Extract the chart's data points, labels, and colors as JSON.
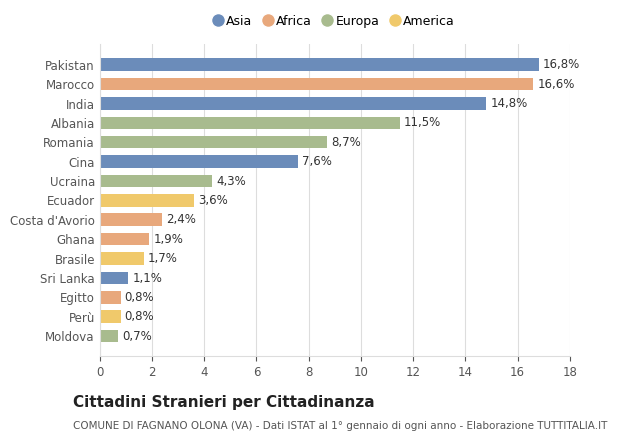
{
  "countries": [
    "Pakistan",
    "Marocco",
    "India",
    "Albania",
    "Romania",
    "Cina",
    "Ucraina",
    "Ecuador",
    "Costa d'Avorio",
    "Ghana",
    "Brasile",
    "Sri Lanka",
    "Egitto",
    "Perù",
    "Moldova"
  ],
  "values": [
    16.8,
    16.6,
    14.8,
    11.5,
    8.7,
    7.6,
    4.3,
    3.6,
    2.4,
    1.9,
    1.7,
    1.1,
    0.8,
    0.8,
    0.7
  ],
  "labels": [
    "16,8%",
    "16,6%",
    "14,8%",
    "11,5%",
    "8,7%",
    "7,6%",
    "4,3%",
    "3,6%",
    "2,4%",
    "1,9%",
    "1,7%",
    "1,1%",
    "0,8%",
    "0,8%",
    "0,7%"
  ],
  "continents": [
    "Asia",
    "Africa",
    "Asia",
    "Europa",
    "Europa",
    "Asia",
    "Europa",
    "America",
    "Africa",
    "Africa",
    "America",
    "Asia",
    "Africa",
    "America",
    "Europa"
  ],
  "colors": {
    "Asia": "#6b8cba",
    "Africa": "#e8a87c",
    "Europa": "#a8bb8e",
    "America": "#f0c96b"
  },
  "legend_order": [
    "Asia",
    "Africa",
    "Europa",
    "America"
  ],
  "title": "Cittadini Stranieri per Cittadinanza",
  "subtitle": "COMUNE DI FAGNANO OLONA (VA) - Dati ISTAT al 1° gennaio di ogni anno - Elaborazione TUTTITALIA.IT",
  "xlim": [
    0,
    18
  ],
  "xticks": [
    0,
    2,
    4,
    6,
    8,
    10,
    12,
    14,
    16,
    18
  ],
  "bg_color": "#ffffff",
  "grid_color": "#dddddd",
  "bar_height": 0.65,
  "label_fontsize": 8.5,
  "tick_fontsize": 8.5,
  "title_fontsize": 11,
  "subtitle_fontsize": 7.5
}
